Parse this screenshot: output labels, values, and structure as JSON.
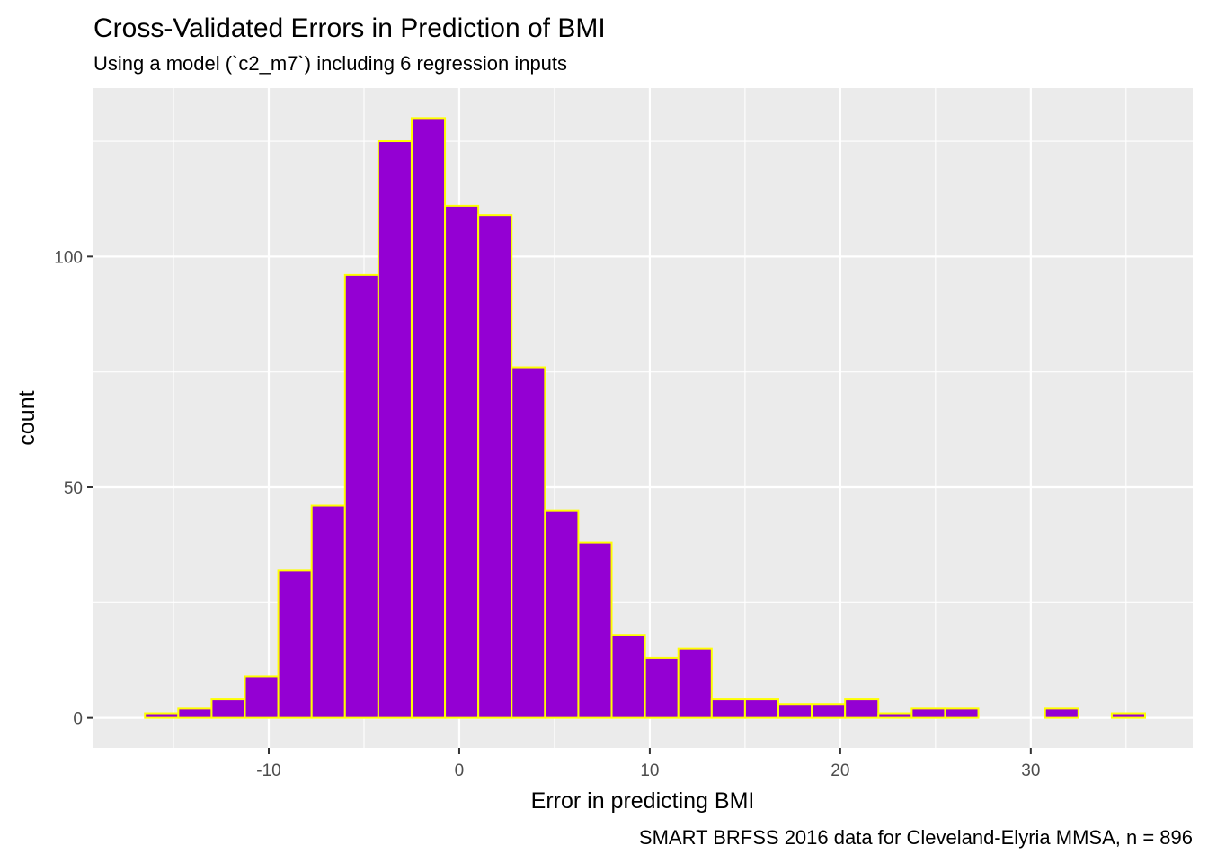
{
  "chart_data": {
    "type": "bar",
    "title": "Cross-Validated Errors in Prediction of BMI",
    "subtitle": "Using a model (`c2_m7`) including 6 regression inputs",
    "caption": "SMART BRFSS 2016 data for Cleveland-Elyria MMSA, n = 896",
    "xlabel": "Error in predicting BMI",
    "ylabel": "count",
    "xlim": [
      -19.2,
      38.5
    ],
    "ylim": [
      -6.5,
      136.5
    ],
    "x_ticks": [
      -10,
      0,
      10,
      20,
      30
    ],
    "y_ticks": [
      0,
      50,
      100
    ],
    "x_tick_labels": [
      "-10",
      "0",
      "10",
      "20",
      "30"
    ],
    "y_tick_labels": [
      "0",
      "50",
      "100"
    ],
    "grid": true,
    "legend": "none",
    "fill_color": "#9400D3",
    "outline_color": "#FFFF00",
    "panel_background": "#EBEBEB",
    "bin_width": 1.75,
    "bins": [
      {
        "x0": -16.5,
        "x1": -14.75,
        "count": 1
      },
      {
        "x0": -14.75,
        "x1": -13.0,
        "count": 2
      },
      {
        "x0": -13.0,
        "x1": -11.25,
        "count": 4
      },
      {
        "x0": -11.25,
        "x1": -9.5,
        "count": 9
      },
      {
        "x0": -9.5,
        "x1": -7.75,
        "count": 32
      },
      {
        "x0": -7.75,
        "x1": -6.0,
        "count": 46
      },
      {
        "x0": -6.0,
        "x1": -4.25,
        "count": 96
      },
      {
        "x0": -4.25,
        "x1": -2.5,
        "count": 125
      },
      {
        "x0": -2.5,
        "x1": -0.75,
        "count": 130
      },
      {
        "x0": -0.75,
        "x1": 1.0,
        "count": 111
      },
      {
        "x0": 1.0,
        "x1": 2.75,
        "count": 109
      },
      {
        "x0": 2.75,
        "x1": 4.5,
        "count": 76
      },
      {
        "x0": 4.5,
        "x1": 6.25,
        "count": 45
      },
      {
        "x0": 6.25,
        "x1": 8.0,
        "count": 38
      },
      {
        "x0": 8.0,
        "x1": 9.75,
        "count": 18
      },
      {
        "x0": 9.75,
        "x1": 11.5,
        "count": 13
      },
      {
        "x0": 11.5,
        "x1": 13.25,
        "count": 15
      },
      {
        "x0": 13.25,
        "x1": 15.0,
        "count": 4
      },
      {
        "x0": 15.0,
        "x1": 16.75,
        "count": 4
      },
      {
        "x0": 16.75,
        "x1": 18.5,
        "count": 3
      },
      {
        "x0": 18.5,
        "x1": 20.25,
        "count": 3
      },
      {
        "x0": 20.25,
        "x1": 22.0,
        "count": 4
      },
      {
        "x0": 22.0,
        "x1": 23.75,
        "count": 1
      },
      {
        "x0": 23.75,
        "x1": 25.5,
        "count": 2
      },
      {
        "x0": 25.5,
        "x1": 27.25,
        "count": 2
      },
      {
        "x0": 27.25,
        "x1": 29.0,
        "count": 0
      },
      {
        "x0": 29.0,
        "x1": 30.75,
        "count": 0
      },
      {
        "x0": 30.75,
        "x1": 32.5,
        "count": 2
      },
      {
        "x0": 32.5,
        "x1": 34.25,
        "count": 0
      },
      {
        "x0": 34.25,
        "x1": 36.0,
        "count": 1
      }
    ]
  }
}
